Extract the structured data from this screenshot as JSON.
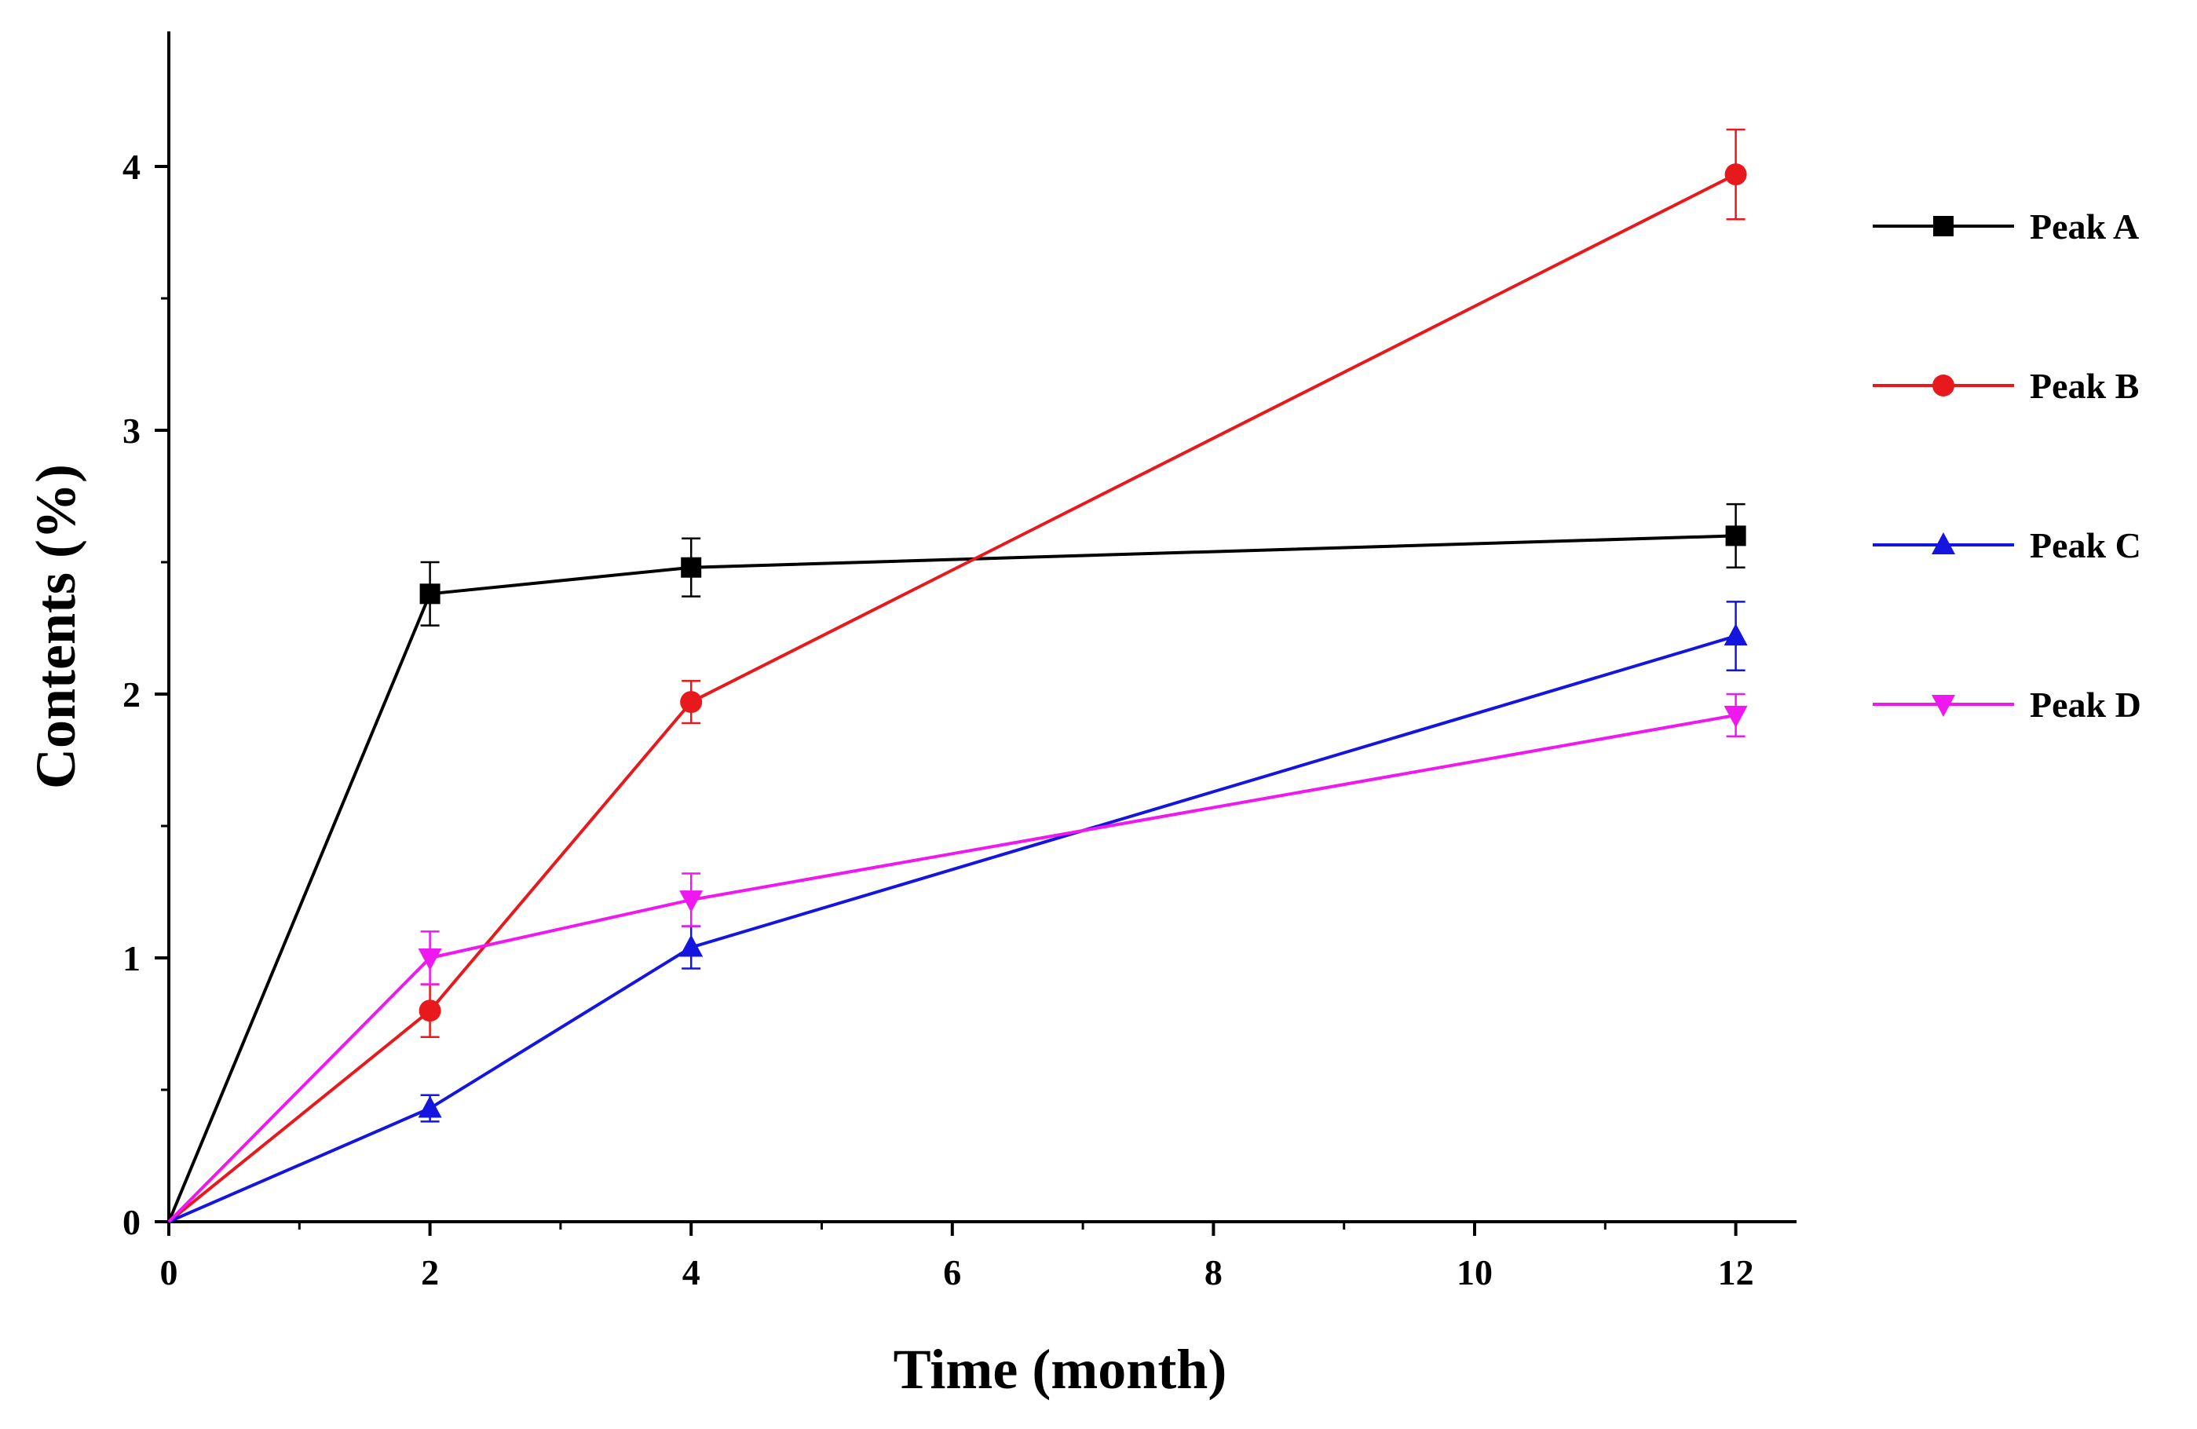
{
  "chart_data": {
    "type": "line",
    "title": "",
    "xlabel": "Time (month)",
    "ylabel": "Contents (%)",
    "xlim": [
      0,
      12.5
    ],
    "ylim": [
      0,
      4.5
    ],
    "xticks": [
      0,
      2,
      4,
      6,
      8,
      10,
      12
    ],
    "xtick_labels": [
      "0",
      "2",
      "4",
      "6",
      "8",
      "10",
      "12"
    ],
    "yticks": [
      0,
      1,
      2,
      3,
      4
    ],
    "ytick_labels": [
      "0",
      "1",
      "2",
      "3",
      "4"
    ],
    "x_minor_step": 1,
    "y_minor_step": 0.5,
    "grid": false,
    "legend_position": "right",
    "x": [
      0,
      2,
      4,
      12
    ],
    "series": [
      {
        "name": "Peak A",
        "color": "#000000",
        "marker": "square",
        "values": [
          0,
          2.38,
          2.48,
          2.6
        ],
        "errors": [
          0,
          0.12,
          0.11,
          0.12
        ]
      },
      {
        "name": "Peak B",
        "color": "#e8191c",
        "marker": "circle",
        "values": [
          0,
          0.8,
          1.97,
          3.97
        ],
        "errors": [
          0,
          0.1,
          0.08,
          0.17
        ]
      },
      {
        "name": "Peak C",
        "color": "#1515e0",
        "marker": "triangle-up",
        "values": [
          0,
          0.43,
          1.04,
          2.22
        ],
        "errors": [
          0,
          0.05,
          0.08,
          0.13
        ]
      },
      {
        "name": "Peak D",
        "color": "#f018f0",
        "marker": "triangle-down",
        "values": [
          0,
          1.0,
          1.22,
          1.92
        ],
        "errors": [
          0,
          0.1,
          0.1,
          0.08
        ]
      }
    ]
  }
}
